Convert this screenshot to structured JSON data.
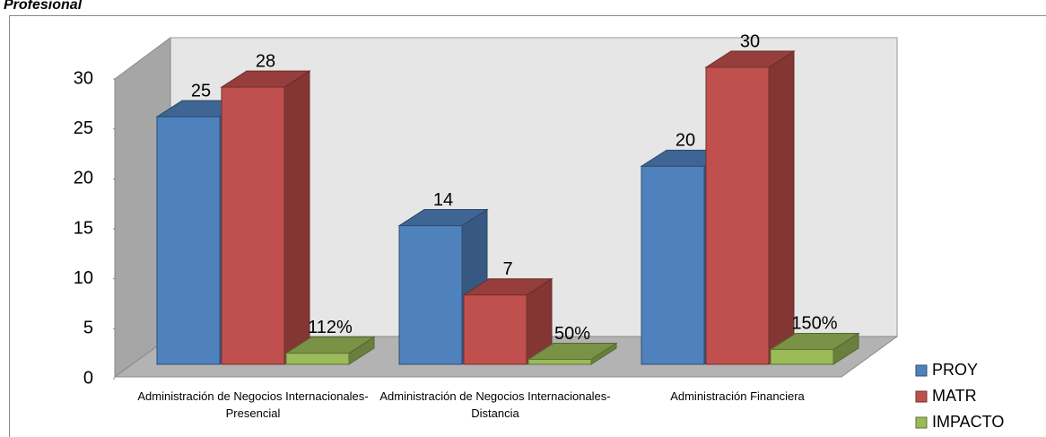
{
  "chart_data": {
    "type": "bar3d",
    "title": "Profesional",
    "categories": [
      "Administración de Negocios Internacionales-Presencial",
      "Administración de Negocios Internacionales-Distancia",
      "Administración Financiera"
    ],
    "series": [
      {
        "name": "PROY",
        "color": "#4f81bd",
        "values": [
          25,
          14,
          20
        ]
      },
      {
        "name": "MATR",
        "color": "#c0504d",
        "values": [
          28,
          7,
          30
        ]
      },
      {
        "name": "IMPACTO",
        "color": "#9bbb59",
        "values": [
          1.12,
          0.5,
          1.5
        ],
        "value_labels": [
          "112%",
          "50%",
          "150%"
        ]
      }
    ],
    "ylim": [
      0,
      30
    ],
    "yticks": [
      0,
      5,
      10,
      15,
      20,
      25,
      30
    ],
    "legend": "right"
  }
}
